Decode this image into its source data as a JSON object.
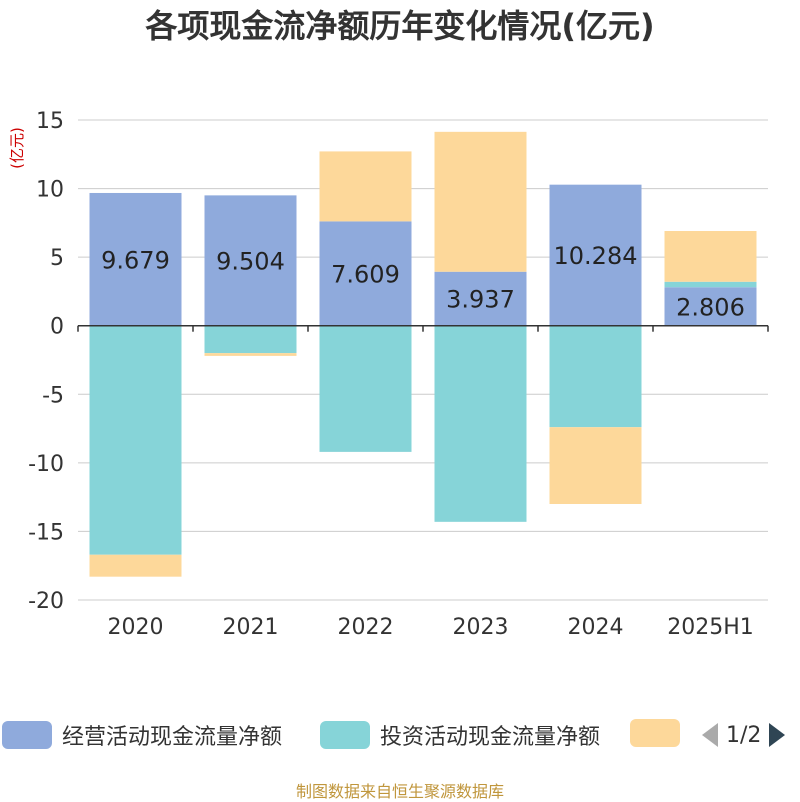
{
  "title": "各项现金流净额历年变化情况(亿元)",
  "source_note": "制图数据来自恒生聚源数据库",
  "legend": {
    "items": [
      {
        "label": "经营活动现金流量净额",
        "color": "#8faadc"
      },
      {
        "label": "投资活动现金流量净额",
        "color": "#86d4d8"
      },
      {
        "label": "",
        "color": "#fdd89a"
      }
    ],
    "page": "1/2"
  },
  "chart_data": {
    "type": "bar",
    "stacked": true,
    "ylabel": "(亿元)",
    "ylim": [
      -20,
      15
    ],
    "yticks": [
      15,
      10,
      5,
      0,
      -5,
      -10,
      -15,
      -20
    ],
    "grid": true,
    "legend_position": "bottom",
    "categories": [
      "2020",
      "2021",
      "2022",
      "2023",
      "2024",
      "2025H1"
    ],
    "series": [
      {
        "name": "经营活动现金流量净额",
        "color": "#8faadc",
        "values": [
          9.679,
          9.504,
          7.609,
          3.937,
          10.284,
          2.806
        ],
        "show_labels": true
      },
      {
        "name": "投资活动现金流量净额",
        "color": "#86d4d8",
        "values": [
          -16.7,
          -2.0,
          -9.2,
          -14.3,
          -7.4,
          0.4
        ],
        "show_labels": false
      },
      {
        "name": "",
        "color": "#fdd89a",
        "values": [
          -1.6,
          -0.2,
          5.1,
          10.2,
          -5.6,
          3.7
        ],
        "show_labels": false
      }
    ]
  }
}
